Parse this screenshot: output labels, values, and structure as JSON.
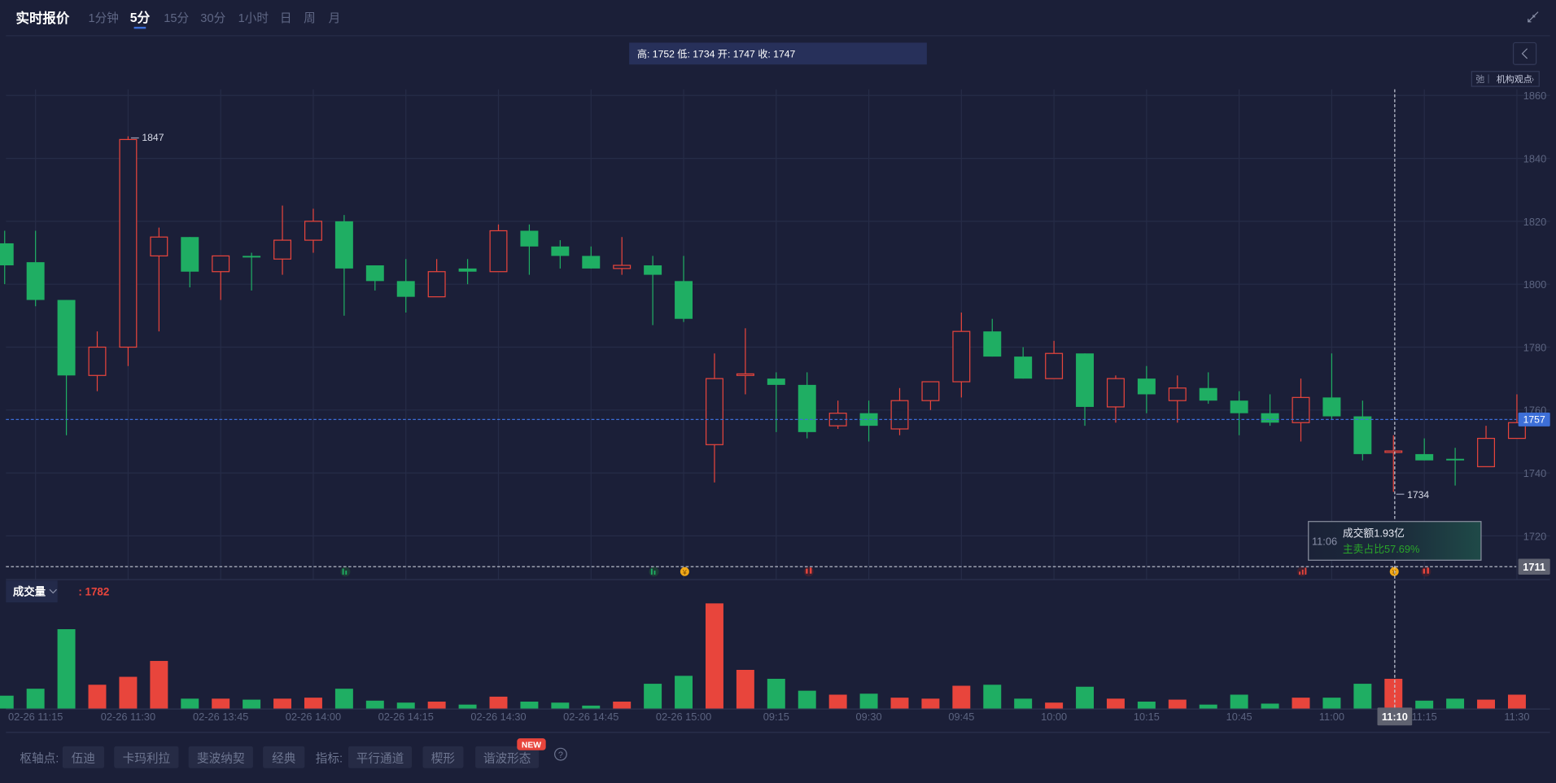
{
  "header": {
    "title": "实时报价",
    "tabs": [
      {
        "label": "1分钟",
        "active": false
      },
      {
        "label": "5分",
        "active": true
      },
      {
        "label": "15分",
        "active": false
      },
      {
        "label": "30分",
        "active": false
      },
      {
        "label": "1小时",
        "active": false
      },
      {
        "label": "日",
        "active": false
      },
      {
        "label": "周",
        "active": false
      },
      {
        "label": "月",
        "active": false
      }
    ],
    "collapse_icon": "collapse-arrows-icon"
  },
  "info_bar": "高: 1752 低: 1734 开: 1747 收: 1747",
  "side_panel": {
    "back_icon": "chevron-left-icon",
    "badge_icon_text": "弛",
    "badge_label": "机构观点",
    "badge_arrow": "›"
  },
  "colors": {
    "up": "#e8453c",
    "down": "#1fae63",
    "background": "#1b1f38",
    "grid": "#262c47",
    "price_line": "#3d6fd8"
  },
  "chart_data": {
    "type": "candlestick",
    "ylim": [
      1711,
      1862
    ],
    "y_ticks": [
      1860,
      1840,
      1820,
      1800,
      1780,
      1760,
      1740,
      1720
    ],
    "x_ticks": [
      {
        "index": 1,
        "label": "02-26 11:15"
      },
      {
        "index": 4,
        "label": "02-26 11:30"
      },
      {
        "index": 7,
        "label": "02-26 13:45"
      },
      {
        "index": 10,
        "label": "02-26 14:00"
      },
      {
        "index": 13,
        "label": "02-26 14:15"
      },
      {
        "index": 16,
        "label": "02-26 14:30"
      },
      {
        "index": 19,
        "label": "02-26 14:45"
      },
      {
        "index": 22,
        "label": "02-26 15:00"
      },
      {
        "index": 25,
        "label": "09:15"
      },
      {
        "index": 28,
        "label": "09:30"
      },
      {
        "index": 31,
        "label": "09:45"
      },
      {
        "index": 34,
        "label": "10:00"
      },
      {
        "index": 37,
        "label": "10:15"
      },
      {
        "index": 40,
        "label": "10:45"
      },
      {
        "index": 43,
        "label": "11:00"
      },
      {
        "index": 46,
        "label": "11:15"
      },
      {
        "index": 49,
        "label": "11:30"
      }
    ],
    "candles": [
      {
        "o": 1813,
        "h": 1817,
        "l": 1800,
        "c": 1806,
        "v": 772
      },
      {
        "o": 1807,
        "h": 1817,
        "l": 1793,
        "c": 1795,
        "v": 1188
      },
      {
        "o": 1795,
        "h": 1795,
        "l": 1752,
        "c": 1771,
        "v": 4752
      },
      {
        "o": 1771,
        "h": 1785,
        "l": 1766,
        "c": 1780,
        "v": 1426
      },
      {
        "o": 1780,
        "h": 1847,
        "l": 1774,
        "c": 1846,
        "v": 1901
      },
      {
        "o": 1809,
        "h": 1818,
        "l": 1785,
        "c": 1815,
        "v": 2851
      },
      {
        "o": 1815,
        "h": 1815,
        "l": 1799,
        "c": 1804,
        "v": 594
      },
      {
        "o": 1804,
        "h": 1809,
        "l": 1795,
        "c": 1809,
        "v": 594
      },
      {
        "o": 1809,
        "h": 1810,
        "l": 1798,
        "c": 1808.5,
        "v": 535
      },
      {
        "o": 1808,
        "h": 1825,
        "l": 1803,
        "c": 1814,
        "v": 594
      },
      {
        "o": 1814,
        "h": 1824,
        "l": 1810,
        "c": 1820,
        "v": 653
      },
      {
        "o": 1820,
        "h": 1822,
        "l": 1790,
        "c": 1805,
        "v": 1188
      },
      {
        "o": 1806,
        "h": 1806,
        "l": 1798,
        "c": 1801,
        "v": 475
      },
      {
        "o": 1801,
        "h": 1808,
        "l": 1791,
        "c": 1796,
        "v": 356
      },
      {
        "o": 1796,
        "h": 1808,
        "l": 1796,
        "c": 1804,
        "v": 416
      },
      {
        "o": 1805,
        "h": 1808,
        "l": 1800,
        "c": 1804,
        "v": 238
      },
      {
        "o": 1804,
        "h": 1819,
        "l": 1804,
        "c": 1817,
        "v": 713
      },
      {
        "o": 1817,
        "h": 1819,
        "l": 1803,
        "c": 1812,
        "v": 416
      },
      {
        "o": 1812,
        "h": 1814,
        "l": 1805,
        "c": 1809,
        "v": 356
      },
      {
        "o": 1809,
        "h": 1812,
        "l": 1805,
        "c": 1805,
        "v": 178
      },
      {
        "o": 1805,
        "h": 1815,
        "l": 1803,
        "c": 1806,
        "v": 416
      },
      {
        "o": 1806,
        "h": 1809,
        "l": 1787,
        "c": 1803,
        "v": 1485
      },
      {
        "o": 1801,
        "h": 1809,
        "l": 1788,
        "c": 1789,
        "v": 1960
      },
      {
        "o": 1749,
        "h": 1778,
        "l": 1737,
        "c": 1770,
        "v": 6296
      },
      {
        "o": 1771,
        "h": 1786,
        "l": 1765,
        "c": 1771.5,
        "v": 2317
      },
      {
        "o": 1770,
        "h": 1772,
        "l": 1753,
        "c": 1768,
        "v": 1782
      },
      {
        "o": 1768,
        "h": 1772,
        "l": 1751,
        "c": 1753,
        "v": 1069
      },
      {
        "o": 1755,
        "h": 1763,
        "l": 1754,
        "c": 1759,
        "v": 832
      },
      {
        "o": 1759,
        "h": 1763,
        "l": 1750,
        "c": 1755,
        "v": 891
      },
      {
        "o": 1754,
        "h": 1767,
        "l": 1752,
        "c": 1763,
        "v": 653
      },
      {
        "o": 1763,
        "h": 1769,
        "l": 1760,
        "c": 1769,
        "v": 594
      },
      {
        "o": 1769,
        "h": 1791,
        "l": 1764,
        "c": 1785,
        "v": 1366
      },
      {
        "o": 1785,
        "h": 1789,
        "l": 1777,
        "c": 1777,
        "v": 1426
      },
      {
        "o": 1777,
        "h": 1780,
        "l": 1770,
        "c": 1770,
        "v": 594
      },
      {
        "o": 1770,
        "h": 1782,
        "l": 1770,
        "c": 1778,
        "v": 356
      },
      {
        "o": 1778,
        "h": 1778,
        "l": 1755,
        "c": 1761,
        "v": 1307
      },
      {
        "o": 1761,
        "h": 1771,
        "l": 1756,
        "c": 1770,
        "v": 594
      },
      {
        "o": 1770,
        "h": 1774,
        "l": 1759,
        "c": 1765,
        "v": 416
      },
      {
        "o": 1763,
        "h": 1771,
        "l": 1756,
        "c": 1767,
        "v": 535
      },
      {
        "o": 1767,
        "h": 1772,
        "l": 1762,
        "c": 1763,
        "v": 238
      },
      {
        "o": 1763,
        "h": 1766,
        "l": 1752,
        "c": 1759,
        "v": 832
      },
      {
        "o": 1759,
        "h": 1765,
        "l": 1755,
        "c": 1756,
        "v": 297
      },
      {
        "o": 1756,
        "h": 1770,
        "l": 1750,
        "c": 1764,
        "v": 653
      },
      {
        "o": 1764,
        "h": 1778,
        "l": 1757,
        "c": 1758,
        "v": 653
      },
      {
        "o": 1758,
        "h": 1763,
        "l": 1744,
        "c": 1746,
        "v": 1485
      },
      {
        "o": 1747,
        "h": 1752,
        "l": 1734,
        "c": 1747,
        "v": 1782
      },
      {
        "o": 1746,
        "h": 1751,
        "l": 1744,
        "c": 1744,
        "v": 475
      },
      {
        "o": 1744.5,
        "h": 1748,
        "l": 1736,
        "c": 1744,
        "v": 594
      },
      {
        "o": 1742,
        "h": 1755,
        "l": 1742,
        "c": 1751,
        "v": 535
      },
      {
        "o": 1751,
        "h": 1765,
        "l": 1751,
        "c": 1756,
        "v": 832
      }
    ],
    "max_label": "1847",
    "min_label": "1734",
    "last_price": "1757",
    "crosshair": {
      "index": 45,
      "price": "1711",
      "time": "11:10"
    }
  },
  "tooltip": {
    "time": "11:06",
    "amount": "成交额1.93亿",
    "sell_ratio": "主卖占比57.69%"
  },
  "volume": {
    "selector": "成交量",
    "value": ": 1782"
  },
  "toolbar": {
    "pivot_label": "枢轴点:",
    "pivot_buttons": [
      "伍迪",
      "卡玛利拉",
      "斐波纳契",
      "经典"
    ],
    "indicator_label": "指标:",
    "indicator_buttons": [
      "平行通道",
      "楔形",
      "谐波形态"
    ],
    "new_badge": "NEW",
    "help": "?"
  }
}
